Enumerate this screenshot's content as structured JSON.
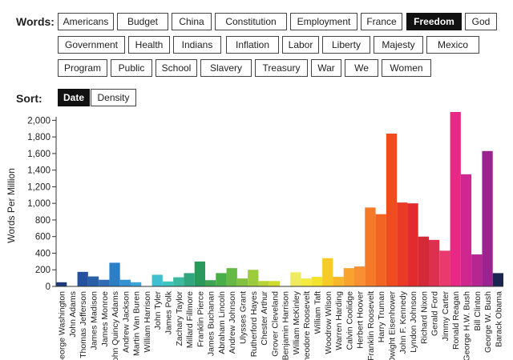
{
  "controls": {
    "words_label": "Words:",
    "sort_label": "Sort:",
    "words": [
      "Americans",
      "Budget",
      "China",
      "Constitution",
      "Employment",
      "France",
      "Freedom",
      "God",
      "Government",
      "Health",
      "Indians",
      "Inflation",
      "Labor",
      "Liberty",
      "Majesty",
      "Mexico",
      "Program",
      "Public",
      "School",
      "Slavery",
      "Treasury",
      "War",
      "We",
      "Women"
    ],
    "selected_word": "Freedom",
    "sort_options": [
      "Date",
      "Density"
    ],
    "selected_sort": "Date"
  },
  "chart_data": {
    "type": "bar",
    "ylabel": "Words Per Million",
    "xlabel": "",
    "ylim": [
      0,
      2100
    ],
    "yticks": [
      0,
      200,
      400,
      600,
      800,
      1000,
      1200,
      1400,
      1600,
      1800,
      2000
    ],
    "ytick_labels": [
      "0",
      "200",
      "400",
      "600",
      "800",
      "1,000",
      "1,200",
      "1,400",
      "1,600",
      "1,800",
      "2,000"
    ],
    "grid": false,
    "categories": [
      "George Washington",
      "John Adams",
      "Thomas Jefferson",
      "James Madison",
      "James Monroe",
      "John Quincy Adams",
      "Andrew Jackson",
      "Martin Van Buren",
      "William Harrison",
      "John Tyler",
      "James Polk",
      "Zachary Taylor",
      "Millard Fillmore",
      "Franklin Pierce",
      "James Buchanan",
      "Abraham Lincoln",
      "Andrew Johnson",
      "Ulysses Grant",
      "Rutherford Hayes",
      "Chester Arthur",
      "Grover Cleveland",
      "Benjamin Harrison",
      "William McKinley",
      "Theodore Roosevelt",
      "William Taft",
      "Woodrow Wilson",
      "Warren Harding",
      "Calvin Coolidge",
      "Herbert Hoover",
      "Franklin Roosevelt",
      "Harry Truman",
      "Dwight Eisenhower",
      "John F. Kennedy",
      "Lyndon Johnson",
      "Richard Nixon",
      "Gerald Ford",
      "Jimmy Carter",
      "Ronald Reagan",
      "George H.W. Bush",
      "Bill Clinton",
      "George W. Bush",
      "Barack Obama"
    ],
    "values": [
      50,
      0,
      175,
      120,
      80,
      285,
      80,
      50,
      0,
      140,
      60,
      110,
      160,
      300,
      75,
      160,
      220,
      95,
      200,
      65,
      65,
      0,
      170,
      95,
      115,
      340,
      115,
      220,
      240,
      950,
      870,
      1840,
      1010,
      1000,
      600,
      560,
      430,
      2110,
      1350,
      385,
      1630,
      160
    ],
    "colors": [
      "#1d3a7a",
      "#1e4590",
      "#24529f",
      "#2a5faa",
      "#2f6cb5",
      "#2d7fc5",
      "#3592d0",
      "#3ba6d9",
      "#3fb5dc",
      "#3fbfd0",
      "#3ec5bd",
      "#3bbaa0",
      "#2fa67e",
      "#2a9a5c",
      "#3ca452",
      "#4aae48",
      "#66b944",
      "#82c240",
      "#9ccb3b",
      "#b7d436",
      "#cfdb31",
      "#e6e42c",
      "#f0ea60",
      "#f3eb40",
      "#f4e32c",
      "#f6cb28",
      "#f7b72b",
      "#f7a32d",
      "#f88f30",
      "#f57a28",
      "#f26422",
      "#ee4b1f",
      "#e93a26",
      "#e32b2e",
      "#d42a38",
      "#dd2f4e",
      "#ea3a6d",
      "#e82885",
      "#cf268f",
      "#b62592",
      "#9a2390",
      "#1a2550"
    ]
  }
}
